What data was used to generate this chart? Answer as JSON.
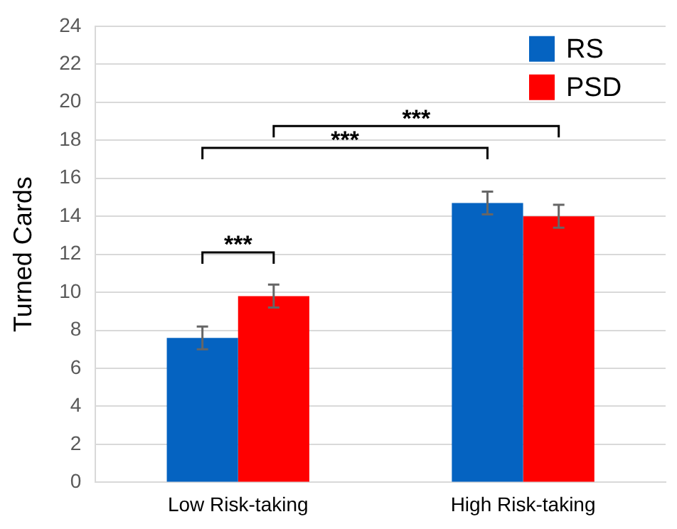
{
  "chart_data": {
    "type": "bar",
    "ylabel": "Turned Cards",
    "categories": [
      "Low Risk-taking",
      "High Risk-taking"
    ],
    "series": [
      {
        "name": "RS",
        "color": "#0563c1",
        "values": [
          7.6,
          14.7
        ],
        "errors": [
          0.6,
          0.6
        ]
      },
      {
        "name": "PSD",
        "color": "#ff0000",
        "values": [
          9.8,
          14.0
        ],
        "errors": [
          0.6,
          0.6
        ]
      }
    ],
    "ylim": [
      0,
      24
    ],
    "yticks": [
      0,
      2,
      4,
      6,
      8,
      10,
      12,
      14,
      16,
      18,
      20,
      22,
      24
    ],
    "grid": "y",
    "legend": "top right",
    "annotations": [
      "***",
      "***",
      "***"
    ]
  }
}
